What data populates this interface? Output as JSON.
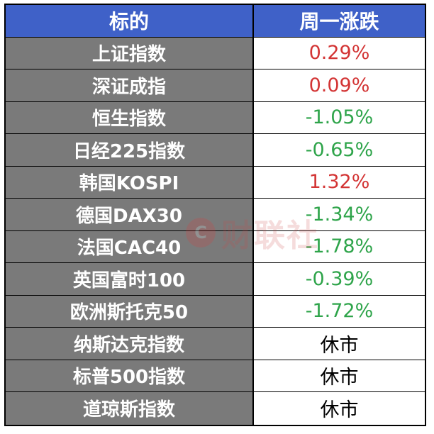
{
  "chart_data": {
    "type": "table",
    "header": {
      "name_col": "标的",
      "change_col": "周一涨跌"
    },
    "rows": [
      {
        "name": "上证指数",
        "change": "0.29%",
        "value": 0.29,
        "trend": "up"
      },
      {
        "name": "深证成指",
        "change": "0.09%",
        "value": 0.09,
        "trend": "up"
      },
      {
        "name": "恒生指数",
        "change": "-1.05%",
        "value": -1.05,
        "trend": "down"
      },
      {
        "name": "日经225指数",
        "change": "-0.65%",
        "value": -0.65,
        "trend": "down"
      },
      {
        "name": "韩国KOSPI",
        "change": "1.32%",
        "value": 1.32,
        "trend": "up"
      },
      {
        "name": "德国DAX30",
        "change": "-1.34%",
        "value": -1.34,
        "trend": "down"
      },
      {
        "name": "法国CAC40",
        "change": "-1.78%",
        "value": -1.78,
        "trend": "down"
      },
      {
        "name": "英国富时100",
        "change": "-0.39%",
        "value": -0.39,
        "trend": "down"
      },
      {
        "name": "欧洲斯托克50",
        "change": "-1.72%",
        "value": -1.72,
        "trend": "down"
      },
      {
        "name": "纳斯达克指数",
        "change": "休市",
        "value": null,
        "trend": "neutral"
      },
      {
        "name": "标普500指数",
        "change": "休市",
        "value": null,
        "trend": "neutral"
      },
      {
        "name": "道琼斯指数",
        "change": "休市",
        "value": null,
        "trend": "neutral"
      }
    ]
  },
  "colors": {
    "header_bg": "#3f61c8",
    "name_bg": "#7a7a7a",
    "up": "#d33434",
    "down": "#2ea44a",
    "neutral": "#000000"
  },
  "watermark": {
    "text": "财联社",
    "icon": "watermark-logo-icon"
  }
}
